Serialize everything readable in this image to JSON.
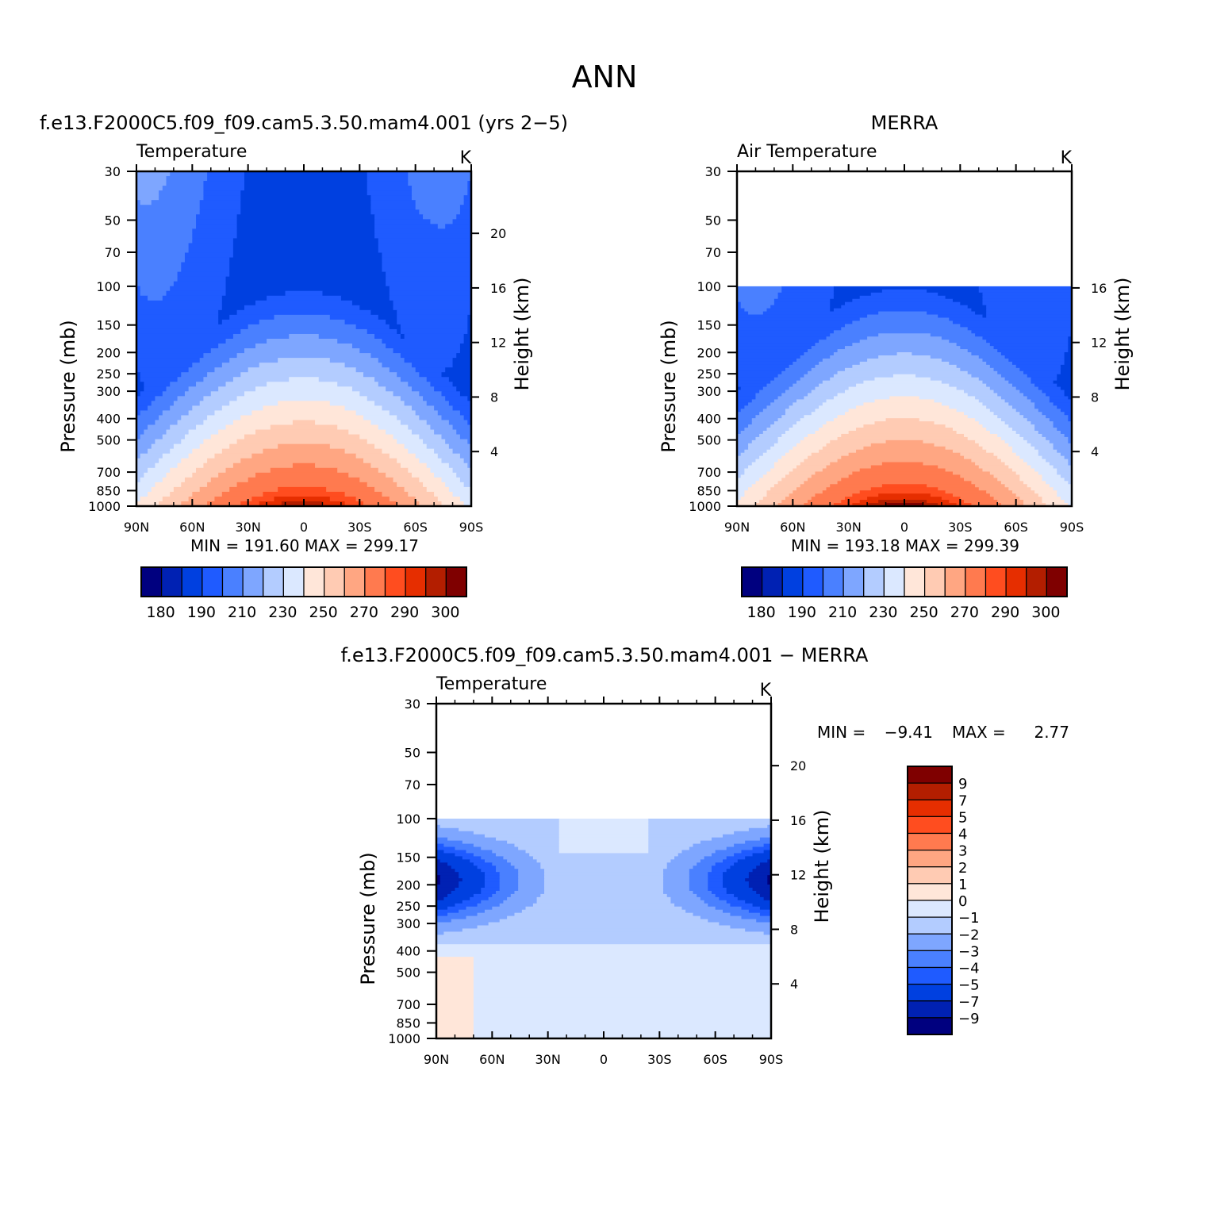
{
  "colors": {
    "temp_palette": [
      "#00007f",
      "#0021b3",
      "#0040e0",
      "#1f5bff",
      "#4a80ff",
      "#7ea6ff",
      "#b3ccff",
      "#dbe8ff",
      "#ffe6d9",
      "#ffcbb3",
      "#ffa682",
      "#ff7a4f",
      "#ff4d1f",
      "#e62e00",
      "#b31e00",
      "#7f0000"
    ],
    "diff_palette": [
      "#00007f",
      "#0021b3",
      "#0040e0",
      "#1f5bff",
      "#4a80ff",
      "#7ea6ff",
      "#b3ccff",
      "#dbe8ff",
      "#ffe6d9",
      "#ffcbb3",
      "#ffa682",
      "#ff7a4f",
      "#ff4d1f",
      "#e62e00",
      "#b31e00",
      "#7f0000"
    ]
  },
  "chart_data": [
    {
      "type": "heatmap",
      "id": "model",
      "title": "f.e13.F2000C5.f09_f09.cam5.3.50.mam4.001 (yrs 2−5)",
      "variable": "Temperature",
      "units": "K",
      "xlabel": "",
      "ylabel": "Pressure (mb)",
      "ylabel_right": "Height (km)",
      "x_ticks": [
        "90N",
        "60N",
        "30N",
        "0",
        "30S",
        "60S",
        "90S"
      ],
      "y_ticks": [
        "30",
        "50",
        "70",
        "100",
        "150",
        "200",
        "250",
        "300",
        "400",
        "500",
        "700",
        "850",
        "1000"
      ],
      "right_ticks": [
        "20",
        "16",
        "12",
        "8",
        "4"
      ],
      "ylim": [
        1000,
        30
      ],
      "top_pressure": 30,
      "min_label": "MIN = 191.60",
      "max_label": "MAX = 299.17",
      "min": 191.6,
      "max": 299.17,
      "colorbar_labels": [
        "180",
        "190",
        "210",
        "230",
        "250",
        "270",
        "290",
        "300"
      ],
      "contour_levels": [
        180,
        185,
        190,
        200,
        210,
        220,
        230,
        240,
        250,
        260,
        270,
        280,
        290,
        295,
        300
      ]
    },
    {
      "type": "heatmap",
      "id": "obs",
      "title": "MERRA",
      "variable": "Air Temperature",
      "units": "K",
      "xlabel": "",
      "ylabel": "Pressure (mb)",
      "ylabel_right": "Height (km)",
      "x_ticks": [
        "90N",
        "60N",
        "30N",
        "0",
        "30S",
        "60S",
        "90S"
      ],
      "y_ticks": [
        "30",
        "50",
        "70",
        "100",
        "150",
        "200",
        "250",
        "300",
        "400",
        "500",
        "700",
        "850",
        "1000"
      ],
      "right_ticks": [
        "16",
        "12",
        "8",
        "4"
      ],
      "ylim": [
        1000,
        30
      ],
      "top_pressure": 100,
      "min_label": "MIN = 193.18",
      "max_label": "MAX = 299.39",
      "min": 193.18,
      "max": 299.39,
      "colorbar_labels": [
        "180",
        "190",
        "210",
        "230",
        "250",
        "270",
        "290",
        "300"
      ],
      "contour_levels": [
        180,
        185,
        190,
        200,
        210,
        220,
        230,
        240,
        250,
        260,
        270,
        280,
        290,
        295,
        300
      ]
    },
    {
      "type": "heatmap",
      "id": "diff",
      "title": "f.e13.F2000C5.f09_f09.cam5.3.50.mam4.001 − MERRA",
      "variable": "Temperature",
      "units": "K",
      "xlabel": "",
      "ylabel": "Pressure (mb)",
      "ylabel_right": "Height (km)",
      "x_ticks": [
        "90N",
        "60N",
        "30N",
        "0",
        "30S",
        "60S",
        "90S"
      ],
      "y_ticks": [
        "30",
        "50",
        "70",
        "100",
        "150",
        "200",
        "250",
        "300",
        "400",
        "500",
        "700",
        "850",
        "1000"
      ],
      "right_ticks": [
        "20",
        "16",
        "12",
        "8",
        "4"
      ],
      "ylim": [
        1000,
        30
      ],
      "top_pressure": 100,
      "min_label": "MIN =",
      "min_value": "−9.41",
      "max_label": "MAX =",
      "max_value": "2.77",
      "min": -9.41,
      "max": 2.77,
      "colorbar_labels": [
        "9",
        "7",
        "5",
        "4",
        "3",
        "2",
        "1",
        "0",
        "−1",
        "−2",
        "−3",
        "−4",
        "−5",
        "−7",
        "−9"
      ],
      "contour_levels": [
        -9,
        -7,
        -5,
        -4,
        -3,
        -2,
        -1,
        0,
        1,
        2,
        3,
        4,
        5,
        7,
        9
      ]
    }
  ],
  "page": {
    "main_title": "ANN"
  }
}
